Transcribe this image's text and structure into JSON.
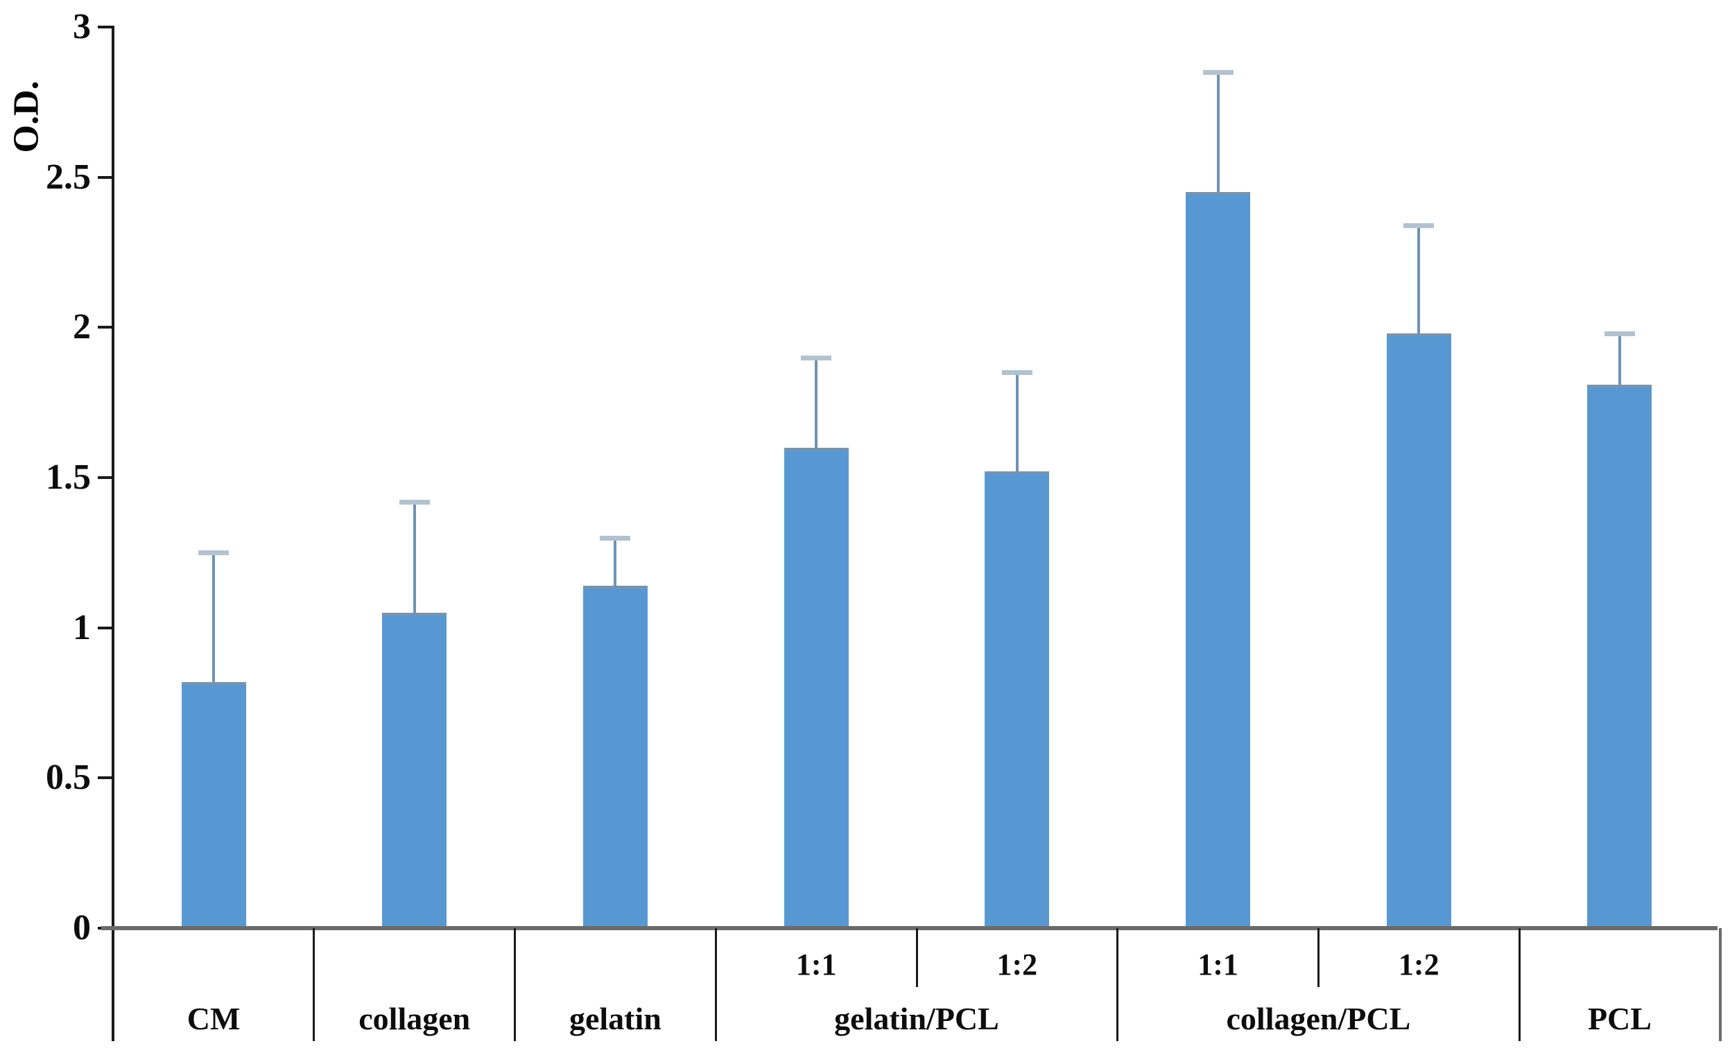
{
  "chart_data": {
    "type": "bar",
    "title": "",
    "xlabel": "",
    "ylabel": "O.D.",
    "ylim": [
      0,
      3
    ],
    "ytick_step": 0.5,
    "ytick_labels": [
      "0",
      "0.5",
      "1",
      "1.5",
      "2",
      "2.5",
      "3"
    ],
    "grid": false,
    "legend": "none",
    "error_bars": "plus_only",
    "groups": [
      {
        "label": "CM",
        "bars": [
          {
            "sublabel": "",
            "value": 0.82,
            "error_plus": 0.43
          }
        ]
      },
      {
        "label": "collagen",
        "bars": [
          {
            "sublabel": "",
            "value": 1.05,
            "error_plus": 0.37
          }
        ]
      },
      {
        "label": "gelatin",
        "bars": [
          {
            "sublabel": "",
            "value": 1.14,
            "error_plus": 0.16
          }
        ]
      },
      {
        "label": "gelatin/PCL",
        "bars": [
          {
            "sublabel": "1:1",
            "value": 1.6,
            "error_plus": 0.3
          },
          {
            "sublabel": "1:2",
            "value": 1.52,
            "error_plus": 0.33
          }
        ]
      },
      {
        "label": "collagen/PCL",
        "bars": [
          {
            "sublabel": "1:1",
            "value": 2.45,
            "error_plus": 0.4
          },
          {
            "sublabel": "1:2",
            "value": 1.98,
            "error_plus": 0.36
          }
        ]
      },
      {
        "label": "PCL",
        "bars": [
          {
            "sublabel": "",
            "value": 1.81,
            "error_plus": 0.17
          }
        ]
      }
    ],
    "colors": {
      "bar_fill": "#5898D2",
      "bar_top_edge": "#7A93A9",
      "error_line": "#6E93B4",
      "error_cap": "#B3C2CF",
      "axis_line": "#1A1A1A",
      "baseline": "#6B6B6B",
      "divider": "#1A1A1A",
      "text": "#0D0D0D",
      "background": "#FFFFFF"
    }
  }
}
